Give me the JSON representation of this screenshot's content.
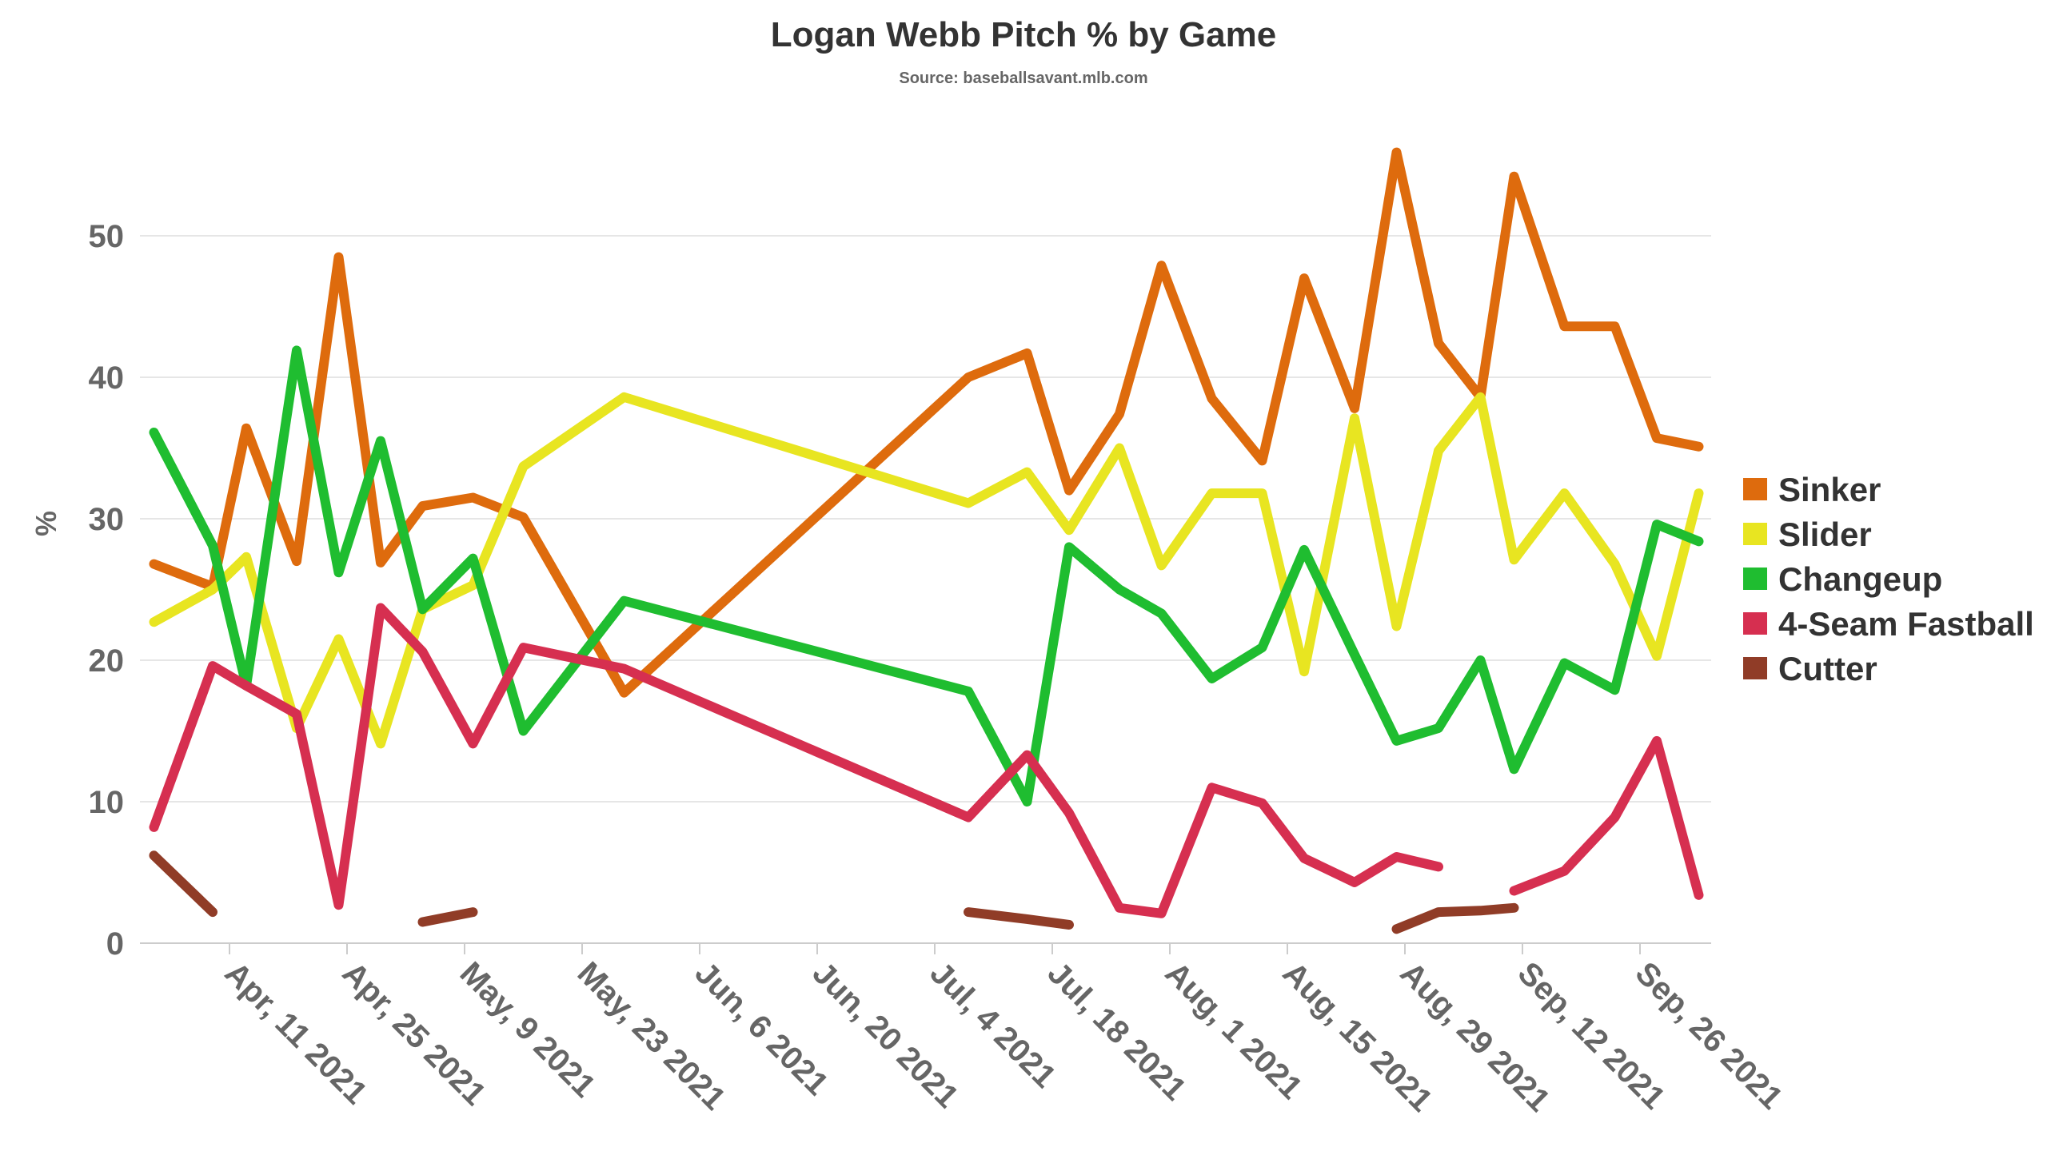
{
  "chart_data": {
    "type": "line",
    "title": "Logan Webb Pitch % by Game",
    "subtitle": "Source: baseballsavant.mlb.com",
    "xlabel": "",
    "ylabel": "%",
    "ylim": [
      0,
      60
    ],
    "yticks": [
      0,
      10,
      20,
      30,
      40,
      50
    ],
    "grid": true,
    "legend_position": "right",
    "x_ticks": [
      {
        "date": "2021-04-11",
        "label": "Apr, 11 2021"
      },
      {
        "date": "2021-04-25",
        "label": "Apr, 25 2021"
      },
      {
        "date": "2021-05-09",
        "label": "May, 9 2021"
      },
      {
        "date": "2021-05-23",
        "label": "May, 23 2021"
      },
      {
        "date": "2021-06-06",
        "label": "Jun, 6 2021"
      },
      {
        "date": "2021-06-20",
        "label": "Jun, 20 2021"
      },
      {
        "date": "2021-07-04",
        "label": "Jul, 4 2021"
      },
      {
        "date": "2021-07-18",
        "label": "Jul, 18 2021"
      },
      {
        "date": "2021-08-01",
        "label": "Aug, 1 2021"
      },
      {
        "date": "2021-08-15",
        "label": "Aug, 15 2021"
      },
      {
        "date": "2021-08-29",
        "label": "Aug, 29 2021"
      },
      {
        "date": "2021-09-12",
        "label": "Sep, 12 2021"
      },
      {
        "date": "2021-09-26",
        "label": "Sep, 26 2021"
      }
    ],
    "x_dates": [
      "2021-04-02",
      "2021-04-09",
      "2021-04-13",
      "2021-04-19",
      "2021-04-24",
      "2021-04-29",
      "2021-05-04",
      "2021-05-10",
      "2021-05-16",
      "2021-05-28",
      "2021-07-08",
      "2021-07-15",
      "2021-07-20",
      "2021-07-26",
      "2021-07-31",
      "2021-08-06",
      "2021-08-12",
      "2021-08-17",
      "2021-08-23",
      "2021-08-28",
      "2021-09-02",
      "2021-09-07",
      "2021-09-11",
      "2021-09-17",
      "2021-09-23",
      "2021-09-28",
      "2021-10-03"
    ],
    "series": [
      {
        "name": "Sinker",
        "color": "#de6b0d",
        "values": [
          26.8,
          25.2,
          36.4,
          27.0,
          48.5,
          26.9,
          30.9,
          31.5,
          30.1,
          17.7,
          40.0,
          41.7,
          32.0,
          37.4,
          47.9,
          38.5,
          34.1,
          47.0,
          37.8,
          55.9,
          42.4,
          38.6,
          54.2,
          43.6,
          43.6,
          35.7,
          35.1
        ]
      },
      {
        "name": "Slider",
        "color": "#e8e521",
        "values": [
          22.7,
          25.0,
          27.3,
          15.2,
          21.5,
          14.1,
          23.6,
          25.3,
          33.7,
          38.6,
          31.1,
          33.3,
          29.2,
          35.0,
          26.7,
          31.8,
          31.8,
          19.2,
          37.1,
          22.4,
          34.8,
          38.6,
          27.1,
          31.8,
          26.8,
          20.3,
          31.8
        ]
      },
      {
        "name": "Changeup",
        "color": "#1fbd30",
        "values": [
          36.1,
          28.1,
          18.2,
          41.9,
          26.2,
          35.5,
          23.6,
          27.2,
          15.0,
          24.2,
          17.8,
          10.0,
          28.0,
          25.0,
          23.3,
          18.7,
          20.9,
          27.8,
          20.4,
          14.3,
          15.2,
          20.0,
          12.3,
          19.8,
          17.9,
          29.6,
          28.4
        ]
      },
      {
        "name": "4-Seam Fastball",
        "color": "#d62f50",
        "values": [
          8.2,
          19.6,
          18.2,
          16.2,
          2.7,
          23.7,
          20.6,
          14.1,
          20.9,
          19.4,
          8.9,
          13.3,
          9.2,
          2.5,
          2.1,
          11.0,
          9.9,
          6.0,
          4.3,
          6.1,
          5.4,
          null,
          3.7,
          5.1,
          8.9,
          14.3,
          3.4
        ]
      },
      {
        "name": "Cutter",
        "color": "#903c27",
        "values": [
          6.2,
          2.2,
          null,
          null,
          null,
          null,
          1.5,
          2.2,
          null,
          null,
          2.2,
          1.7,
          1.3,
          null,
          null,
          null,
          null,
          null,
          null,
          1.0,
          2.2,
          2.3,
          2.5,
          null,
          null,
          null,
          null
        ]
      }
    ]
  }
}
